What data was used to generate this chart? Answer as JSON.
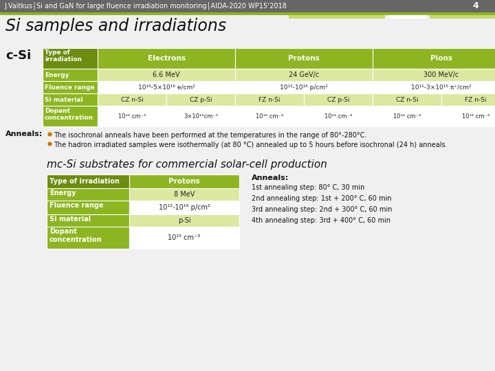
{
  "header_bg": "#666666",
  "header_text": "J.Vaitkus│Si and GaN for large fluence irradiation monitoring│AIDA-2020 WP15‘2018",
  "slide_number": "4",
  "title": "Si samples and irradiations",
  "bg_color": "#f0f0f0",
  "olive": "#8db521",
  "olive_dark": "#6d8c10",
  "olive_light": "#c5d96d",
  "olive_lighter": "#dce8a0",
  "white": "#ffffff",
  "c_si_label": "c-Si",
  "anneal_bullet1": "The isochronal anneals have been performed at the temperatures in the range of 80°-280°C.",
  "anneal_bullet2": "The hadron irradiated samples were isothermally (at 80 °C) annealed up to 5 hours before isochronal (24 h) anneals.",
  "mc_title": "mc-Si substrates for commercial solar-cell production",
  "anneals2_steps": [
    "1st annealing step: 80° C, 30 min",
    "2nd annealing step: 1st + 200° C, 60 min",
    "3rd annealing step: 2nd + 300° C, 60 min",
    "4th annealing step: 3rd + 400° C, 60 min"
  ]
}
